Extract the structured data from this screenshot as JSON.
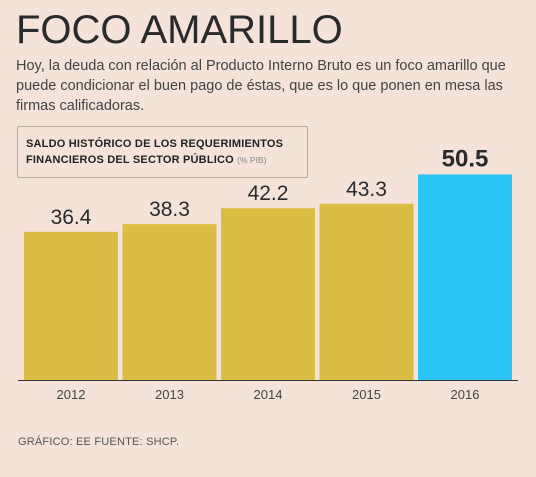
{
  "headline": "FOCO AMARILLO",
  "deck": "Hoy, la deuda con relación al Producto  Interno Bruto es un foco amarillo que puede condicionar el buen pago de éstas, que es lo que ponen en mesa las firmas calificadoras.",
  "footer": "GRÁFICO: EE  FUENTE: SHCP.",
  "colors": {
    "background": "#f5e3da",
    "bar": "#dbbd43",
    "highlight": "#2ac5f4",
    "axis": "#333333"
  },
  "chart_data": {
    "type": "bar",
    "title_line1": "SALDO HISTÓRICO DE LOS REQUERIMIENTOS",
    "title_line2": "FINANCIEROS DEL SECTOR PÚBLICO",
    "unit": "(% PIB)",
    "categories": [
      "2012",
      "2013",
      "2014",
      "2015",
      "2016"
    ],
    "values": [
      36.4,
      38.3,
      42.2,
      43.3,
      50.5
    ],
    "labels": [
      "36.4",
      "38.3",
      "42.2",
      "43.3",
      "50.5"
    ],
    "highlight_index": 4,
    "grid": false,
    "legend": "none"
  }
}
